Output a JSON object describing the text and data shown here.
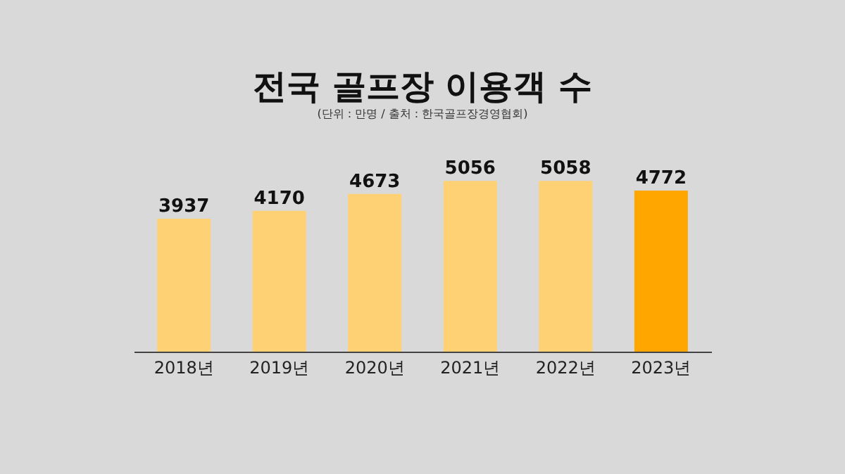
{
  "chart_data": {
    "type": "bar",
    "title": "전국 골프장 이용객 수",
    "subtitle": "(단위 : 만명 / 출처 : 한국골프장경영협회)",
    "categories": [
      "2018년",
      "2019년",
      "2020년",
      "2021년",
      "2022년",
      "2023년"
    ],
    "values": [
      3937,
      4170,
      4673,
      5056,
      5058,
      4772
    ],
    "colors": [
      "#ffd175",
      "#ffd175",
      "#ffd175",
      "#ffd175",
      "#ffd175",
      "#ffa600"
    ],
    "data_labels": true
  }
}
